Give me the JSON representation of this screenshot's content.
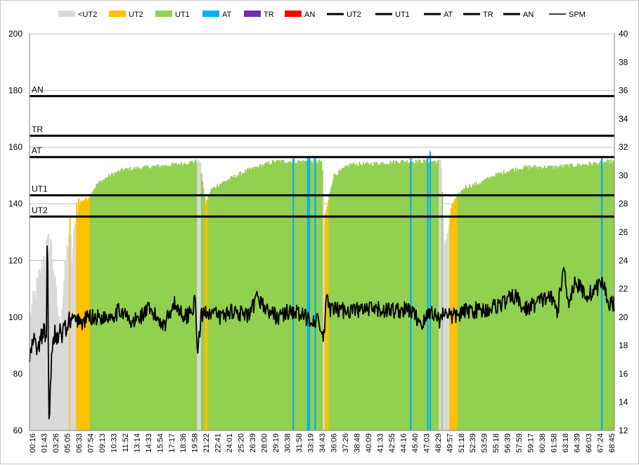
{
  "chart_data": {
    "type": "bar",
    "title": "",
    "xlabel": "",
    "ylabel": "",
    "y2label": "",
    "ylim": [
      60,
      200
    ],
    "y2lim": [
      12,
      40
    ],
    "yticks": [
      60,
      80,
      100,
      120,
      140,
      160,
      180,
      200
    ],
    "y2ticks": [
      12,
      14,
      16,
      18,
      20,
      22,
      24,
      26,
      28,
      30,
      32,
      34,
      36,
      38,
      40
    ],
    "grid": "horizontal",
    "legend_position": "top",
    "duration_minutes": 69.2,
    "xtick_labels": [
      "00:16",
      "01:43",
      "03:26",
      "05:05",
      "06:33",
      "07:54",
      "09:13",
      "10:33",
      "11:52",
      "13:14",
      "14:33",
      "15:54",
      "17:17",
      "18:36",
      "19:58",
      "21:22",
      "22:41",
      "24:01",
      "25:20",
      "26:39",
      "28:00",
      "29:19",
      "30:38",
      "31:58",
      "33:19",
      "34:43",
      "36:06",
      "37:26",
      "38:48",
      "40:09",
      "41:33",
      "42:55",
      "44:16",
      "45:40",
      "47:03",
      "48:29",
      "49:57",
      "51:18",
      "52:39",
      "53:59",
      "55:18",
      "56:39",
      "57:59",
      "59:17",
      "60:38",
      "61:58",
      "63:18",
      "64:39",
      "66:03",
      "67:24",
      "68:45"
    ],
    "legend": [
      {
        "label": "<UT2",
        "kind": "swatch",
        "color": "#d9d9d9"
      },
      {
        "label": "UT2",
        "kind": "swatch",
        "color": "#ffc000"
      },
      {
        "label": "UT1",
        "kind": "swatch",
        "color": "#92d050"
      },
      {
        "label": "AT",
        "kind": "swatch",
        "color": "#00b0f0"
      },
      {
        "label": "TR",
        "kind": "swatch",
        "color": "#7030a0"
      },
      {
        "label": "AN",
        "kind": "swatch",
        "color": "#ff0000"
      },
      {
        "label": "UT2",
        "kind": "thick-line",
        "color": "#000000"
      },
      {
        "label": "UT1",
        "kind": "thick-line",
        "color": "#000000"
      },
      {
        "label": "AT",
        "kind": "thick-line",
        "color": "#000000"
      },
      {
        "label": "TR",
        "kind": "thick-line",
        "color": "#000000"
      },
      {
        "label": "AN",
        "kind": "thick-line",
        "color": "#000000"
      },
      {
        "label": "SPM",
        "kind": "thin-line",
        "color": "#000000"
      }
    ],
    "thresholds": [
      {
        "name": "UT2",
        "value": 135.5
      },
      {
        "name": "UT1",
        "value": 143
      },
      {
        "name": "AT",
        "value": 156.5
      },
      {
        "name": "TR",
        "value": 164
      },
      {
        "name": "AN",
        "value": 178
      }
    ],
    "zone_colors": {
      "<UT2": "#d9d9d9",
      "UT2": "#ffc000",
      "UT1": "#92d050",
      "AT": "#00b0f0",
      "TR": "#7030a0",
      "AN": "#ff0000"
    },
    "hr_series_keypoints": {
      "t": [
        0,
        0.8,
        2.0,
        2.5,
        3.6,
        4.1,
        4.4,
        4.8,
        5.0,
        5.6,
        6.1,
        6.9,
        8.0,
        9.5,
        11.0,
        14.0,
        17.5,
        19.7,
        20.2,
        20.8,
        21.5,
        22.5,
        24.5,
        26.0,
        29.0,
        33.0,
        34.0,
        34.6,
        34.9,
        35.3,
        35.6,
        36.0,
        36.5,
        38.0,
        40.0,
        44.0,
        48.3,
        48.7,
        49.1,
        49.5,
        50.0,
        51.5,
        53.0,
        55.0,
        57.0,
        59.0,
        62.0,
        66.0,
        69.2
      ],
      "hr": [
        100,
        110,
        125,
        128,
        95,
        113,
        122,
        133,
        120,
        140,
        141,
        142,
        147,
        150,
        152,
        153,
        154,
        155,
        155,
        140,
        145,
        147,
        150,
        152,
        155,
        155,
        155,
        155,
        135,
        140,
        145,
        150,
        151,
        154,
        154,
        155,
        155,
        155,
        125,
        130,
        140,
        146,
        147,
        150,
        152,
        153,
        153,
        154,
        155
      ],
      "gaps": [
        [
          19.8,
          20.3
        ],
        [
          34.7,
          35.0
        ],
        [
          48.4,
          48.8
        ]
      ]
    },
    "zone_spikes": [
      {
        "t": 31.2,
        "zone": "AT",
        "hr": 156.5
      },
      {
        "t": 32.9,
        "zone": "AT",
        "hr": 156.5
      },
      {
        "t": 33.1,
        "zone": "AT",
        "hr": 156.5
      },
      {
        "t": 33.8,
        "zone": "AT",
        "hr": 156.5
      },
      {
        "t": 45.1,
        "zone": "AT",
        "hr": 156.5
      },
      {
        "t": 47.1,
        "zone": "AT",
        "hr": 156.5
      },
      {
        "t": 47.4,
        "zone": "AT",
        "hr": 158.5
      },
      {
        "t": 67.7,
        "zone": "AT",
        "hr": 156.5
      }
    ],
    "spm_series_keypoints": {
      "t": [
        0,
        0.5,
        1.0,
        1.3,
        1.7,
        2.0,
        2.1,
        2.3,
        2.6,
        3.0,
        3.2,
        3.6,
        3.9,
        4.1,
        4.4,
        4.7,
        4.9,
        5.2,
        5.5,
        5.8,
        6.2,
        6.8,
        7.5,
        9.0,
        11.0,
        12.0,
        14.0,
        16.0,
        17.0,
        18.5,
        19.6,
        19.9,
        20.3,
        21.0,
        22.5,
        24.0,
        26.0,
        27.0,
        28.0,
        29.5,
        31.0,
        32.5,
        34.0,
        34.8,
        35.2,
        35.6,
        37.0,
        39.0,
        41.0,
        43.0,
        45.0,
        46.5,
        47.5,
        48.5,
        49.2,
        50.0,
        52.0,
        54.0,
        56.0,
        57.5,
        58.5,
        60.0,
        61.5,
        62.5,
        63.2,
        63.8,
        64.5,
        66.0,
        67.0,
        67.8,
        68.5,
        69.2
      ],
      "spm": [
        17,
        18.5,
        17.5,
        18.5,
        19,
        18.5,
        27.3,
        12.5,
        17,
        19,
        18.5,
        19,
        18.5,
        20,
        18.5,
        20,
        19.5,
        20,
        19.5,
        20,
        19.5,
        20,
        20,
        20,
        20.5,
        19.5,
        20.5,
        19.5,
        21,
        20,
        21,
        17.5,
        20,
        20.5,
        20,
        20.5,
        20,
        21.5,
        20.5,
        20,
        20.5,
        20,
        19.8,
        18.5,
        21.5,
        20.5,
        20.5,
        20.5,
        20.5,
        20.5,
        20.5,
        19.5,
        20.5,
        19.8,
        20.5,
        20,
        20.5,
        20.5,
        21,
        21.5,
        20.5,
        21,
        21.5,
        20.5,
        23.5,
        21,
        22.5,
        21.5,
        22,
        22.5,
        21,
        21
      ]
    }
  }
}
